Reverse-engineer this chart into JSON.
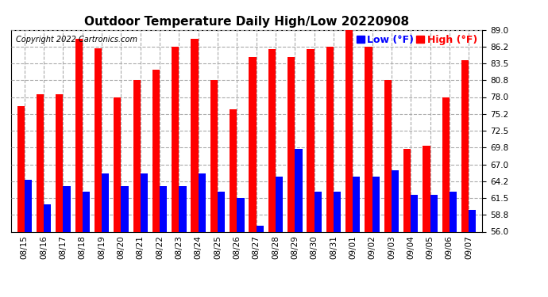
{
  "title": "Outdoor Temperature Daily High/Low 20220908",
  "copyright": "Copyright 2022 Cartronics.com",
  "legend_low_label": "Low (°F)",
  "legend_high_label": "High (°F)",
  "dates": [
    "08/15",
    "08/16",
    "08/17",
    "08/18",
    "08/19",
    "08/20",
    "08/21",
    "08/22",
    "08/23",
    "08/24",
    "08/25",
    "08/26",
    "08/27",
    "08/28",
    "08/29",
    "08/30",
    "08/31",
    "09/01",
    "09/02",
    "09/03",
    "09/04",
    "09/05",
    "09/06",
    "09/07"
  ],
  "highs": [
    76.5,
    78.5,
    78.5,
    87.5,
    86.0,
    78.0,
    80.8,
    82.5,
    86.2,
    87.5,
    80.8,
    76.0,
    84.5,
    85.8,
    84.5,
    85.8,
    86.2,
    89.0,
    86.2,
    80.8,
    69.5,
    70.0,
    78.0,
    84.0
  ],
  "lows": [
    64.5,
    60.5,
    63.5,
    62.5,
    65.5,
    63.5,
    65.5,
    63.5,
    63.5,
    65.5,
    62.5,
    61.5,
    57.0,
    65.0,
    69.5,
    62.5,
    62.5,
    65.0,
    65.0,
    66.0,
    62.0,
    62.0,
    62.5,
    59.5
  ],
  "high_color": "#ff0000",
  "low_color": "#0000ff",
  "background_color": "#ffffff",
  "plot_bg_color": "#ffffff",
  "grid_color": "#aaaaaa",
  "ymin": 56.0,
  "ymax": 89.0,
  "yticks": [
    56.0,
    58.8,
    61.5,
    64.2,
    67.0,
    69.8,
    72.5,
    75.2,
    78.0,
    80.8,
    83.5,
    86.2,
    89.0
  ],
  "title_fontsize": 11,
  "copyright_fontsize": 7,
  "legend_fontsize": 9,
  "tick_fontsize": 7.5,
  "bar_width": 0.38
}
